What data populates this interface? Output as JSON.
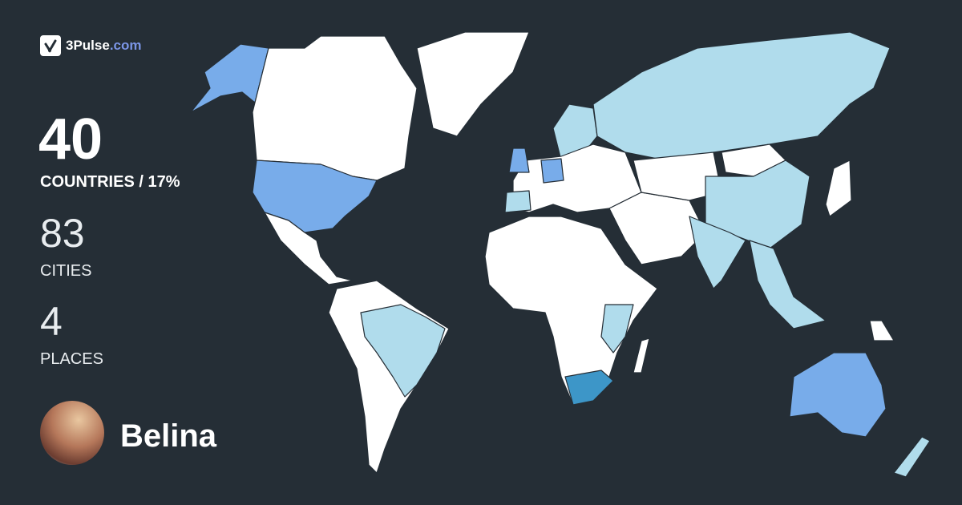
{
  "brand": {
    "name": "3Pulse",
    "domain": ".com",
    "icon": "checkmark-node-icon"
  },
  "stats": {
    "countries_value": "40",
    "countries_label": "COUNTRIES / 17%",
    "cities_value": "83",
    "cities_label": "CITIES",
    "places_value": "4",
    "places_label": "PLACES"
  },
  "user": {
    "name": "Belina"
  },
  "colors": {
    "background": "#252e36",
    "unvisited": "#ffffff",
    "visited_light": "#b0dcec",
    "visited_medium": "#78acea",
    "visited_dark": "#3d96c8",
    "brand_accent": "#7b95e6"
  }
}
